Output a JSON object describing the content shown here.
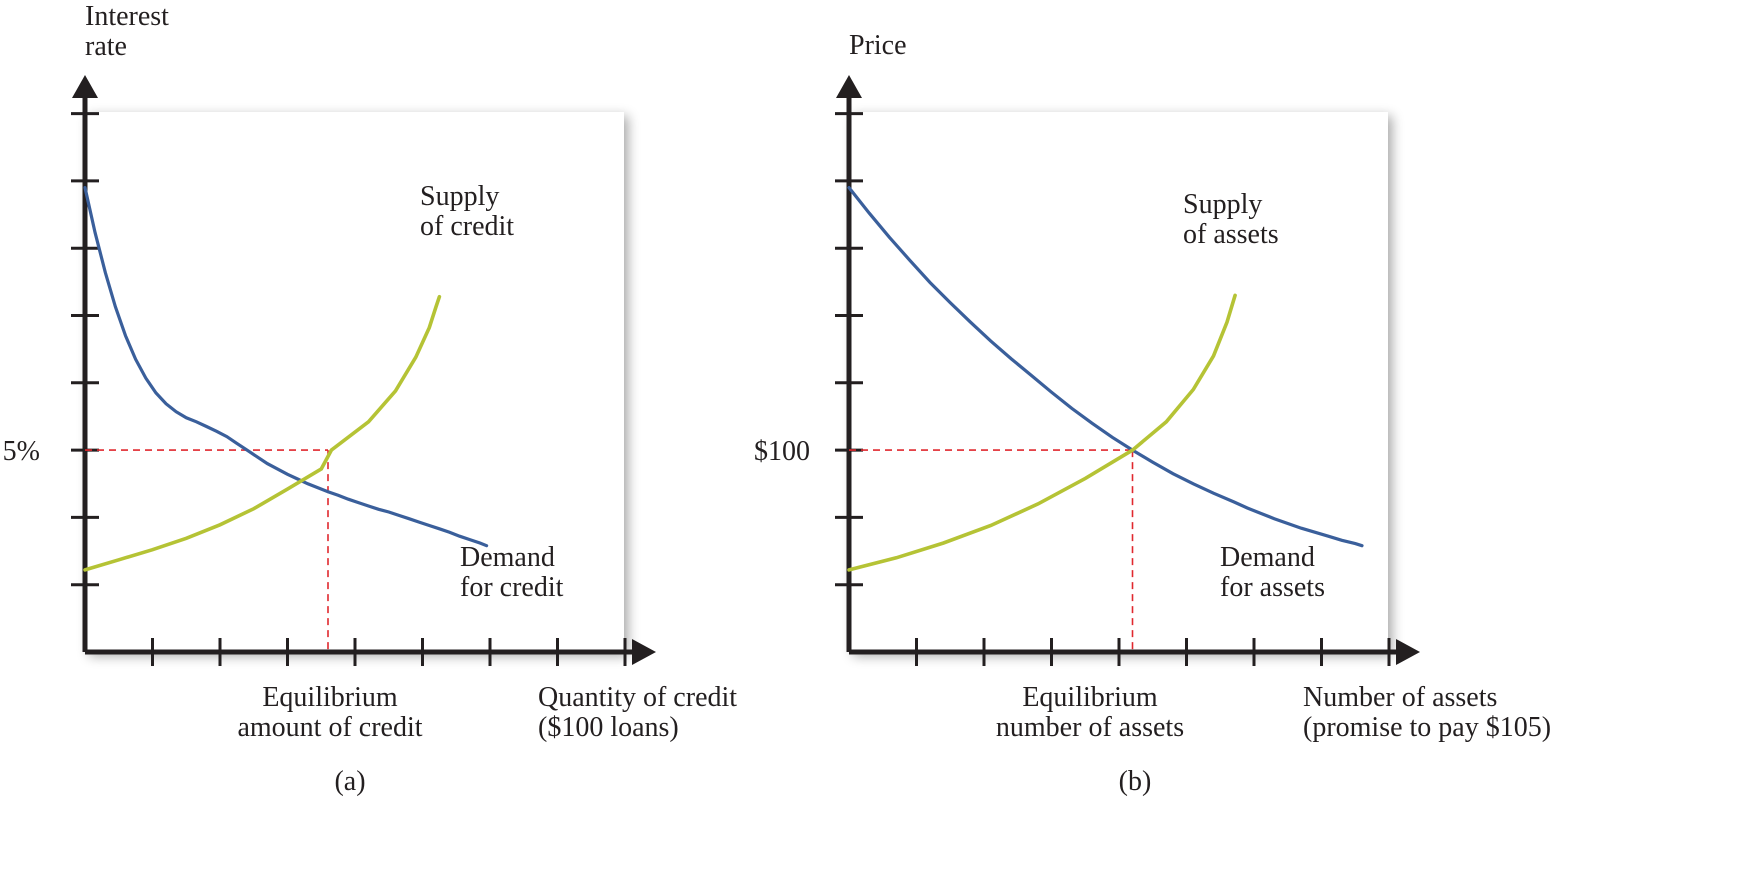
{
  "colors": {
    "background": "#ffffff",
    "axis": "#231f20",
    "demand": "#3a5f9b",
    "supply": "#b5c335",
    "guide": "#e0282e"
  },
  "chart_data": [
    {
      "type": "line",
      "panel_label": "(a)",
      "ylabel": [
        "Interest",
        "rate"
      ],
      "xlabel": [
        "Quantity of credit",
        "($100 loans)"
      ],
      "y_marker_label": "5%",
      "x_marker_label": [
        "Equilibrium",
        "amount of credit"
      ],
      "grid": false,
      "series": [
        {
          "name": "Demand for credit",
          "label_lines": [
            "Demand",
            "for credit"
          ],
          "role": "demand",
          "points": [
            [
              0,
              6.9
            ],
            [
              0.15,
              6.23
            ],
            [
              0.3,
              5.64
            ],
            [
              0.45,
              5.13
            ],
            [
              0.6,
              4.7
            ],
            [
              0.75,
              4.35
            ],
            [
              0.9,
              4.07
            ],
            [
              1.05,
              3.85
            ],
            [
              1.2,
              3.69
            ],
            [
              1.35,
              3.57
            ],
            [
              1.5,
              3.48
            ],
            [
              1.65,
              3.42
            ],
            [
              1.8,
              3.35
            ],
            [
              1.95,
              3.28
            ],
            [
              2.1,
              3.2
            ],
            [
              2.25,
              3.1
            ],
            [
              2.4,
              3.0
            ],
            [
              2.55,
              2.9
            ],
            [
              2.7,
              2.8
            ],
            [
              2.85,
              2.72
            ],
            [
              3.0,
              2.64
            ],
            [
              3.15,
              2.57
            ],
            [
              3.3,
              2.5
            ],
            [
              3.45,
              2.44
            ],
            [
              3.6,
              2.38
            ],
            [
              3.75,
              2.33
            ],
            [
              3.9,
              2.27
            ],
            [
              4.05,
              2.22
            ],
            [
              4.2,
              2.17
            ],
            [
              4.35,
              2.12
            ],
            [
              4.5,
              2.08
            ],
            [
              4.65,
              2.03
            ],
            [
              4.8,
              1.98
            ],
            [
              4.95,
              1.93
            ],
            [
              5.1,
              1.88
            ],
            [
              5.25,
              1.83
            ],
            [
              5.4,
              1.78
            ],
            [
              5.55,
              1.72
            ],
            [
              5.7,
              1.67
            ],
            [
              5.85,
              1.62
            ],
            [
              5.95,
              1.58
            ]
          ]
        },
        {
          "name": "Supply of credit",
          "label_lines": [
            "Supply",
            "of credit"
          ],
          "role": "supply",
          "points": [
            [
              0,
              1.22
            ],
            [
              0.5,
              1.37
            ],
            [
              1.0,
              1.52
            ],
            [
              1.5,
              1.69
            ],
            [
              2.0,
              1.89
            ],
            [
              2.5,
              2.13
            ],
            [
              3.0,
              2.42
            ],
            [
              3.5,
              2.72
            ],
            [
              3.65,
              3.0
            ],
            [
              4.2,
              3.42
            ],
            [
              4.6,
              3.88
            ],
            [
              4.9,
              4.38
            ],
            [
              5.1,
              4.82
            ],
            [
              5.2,
              5.13
            ],
            [
              5.25,
              5.28
            ]
          ]
        }
      ],
      "equilibrium": {
        "x": 3.6,
        "y": 3.0
      }
    },
    {
      "type": "line",
      "panel_label": "(b)",
      "ylabel": [
        "Price"
      ],
      "xlabel": [
        "Number of assets",
        "(promise to pay $105)"
      ],
      "y_marker_label": "$100",
      "x_marker_label": [
        "Equilibrium",
        "number of assets"
      ],
      "grid": false,
      "series": [
        {
          "name": "Demand for assets",
          "label_lines": [
            "Demand",
            "for assets"
          ],
          "role": "demand",
          "points": [
            [
              0,
              6.9
            ],
            [
              0.3,
              6.52
            ],
            [
              0.6,
              6.16
            ],
            [
              0.9,
              5.82
            ],
            [
              1.2,
              5.49
            ],
            [
              1.5,
              5.19
            ],
            [
              1.8,
              4.9
            ],
            [
              2.1,
              4.62
            ],
            [
              2.4,
              4.36
            ],
            [
              2.7,
              4.11
            ],
            [
              3.0,
              3.86
            ],
            [
              3.3,
              3.62
            ],
            [
              3.6,
              3.4
            ],
            [
              3.9,
              3.19
            ],
            [
              4.2,
              3.0
            ],
            [
              4.5,
              2.82
            ],
            [
              4.8,
              2.65
            ],
            [
              5.1,
              2.5
            ],
            [
              5.4,
              2.36
            ],
            [
              5.7,
              2.23
            ],
            [
              5.9,
              2.14
            ],
            [
              6.1,
              2.06
            ],
            [
              6.3,
              1.98
            ],
            [
              6.5,
              1.91
            ],
            [
              6.7,
              1.84
            ],
            [
              6.9,
              1.78
            ],
            [
              7.1,
              1.72
            ],
            [
              7.3,
              1.66
            ],
            [
              7.5,
              1.61
            ],
            [
              7.6,
              1.58
            ]
          ]
        },
        {
          "name": "Supply of assets",
          "label_lines": [
            "Supply",
            "of assets"
          ],
          "role": "supply",
          "points": [
            [
              0,
              1.22
            ],
            [
              0.7,
              1.4
            ],
            [
              1.4,
              1.62
            ],
            [
              2.1,
              1.88
            ],
            [
              2.8,
              2.2
            ],
            [
              3.5,
              2.58
            ],
            [
              4.2,
              3.0
            ],
            [
              4.7,
              3.42
            ],
            [
              5.1,
              3.9
            ],
            [
              5.4,
              4.4
            ],
            [
              5.6,
              4.9
            ],
            [
              5.72,
              5.3
            ]
          ]
        }
      ],
      "equilibrium": {
        "x": 4.2,
        "y": 3.0
      }
    }
  ]
}
